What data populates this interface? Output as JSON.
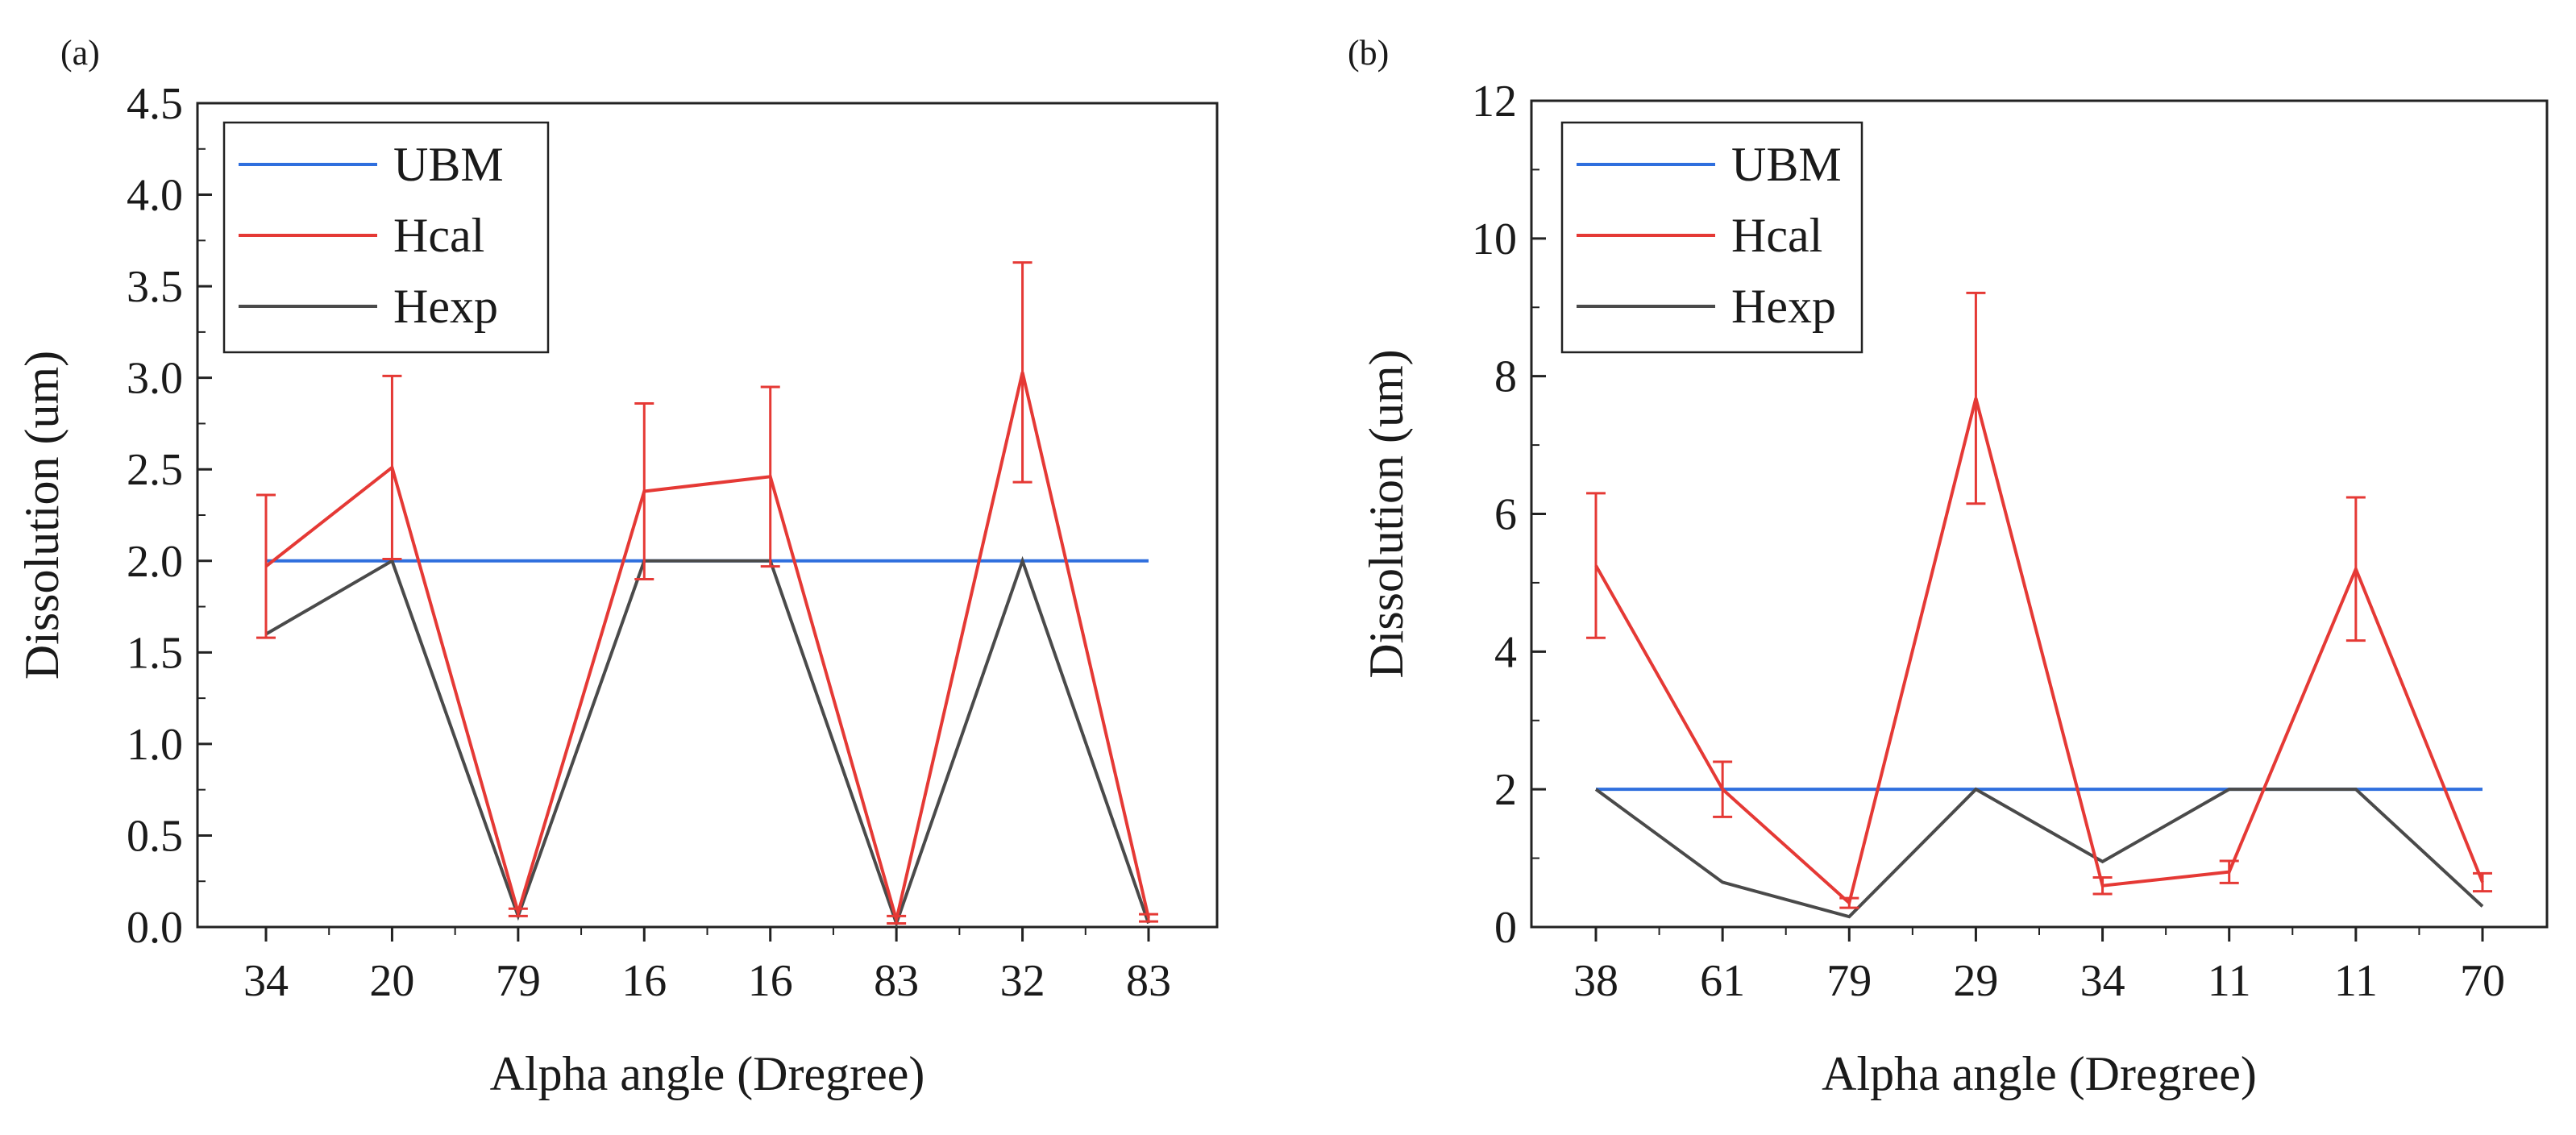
{
  "chart_data": [
    {
      "type": "line",
      "panel_label": "(a)",
      "categories": [
        "34",
        "20",
        "79",
        "16",
        "16",
        "83",
        "32",
        "83"
      ],
      "series": [
        {
          "name": "UBM",
          "color": "#2f6fde",
          "values": [
            2.0,
            2.0,
            2.0,
            2.0,
            2.0,
            2.0,
            2.0,
            2.0
          ]
        },
        {
          "name": "Hcal",
          "color": "#e53935",
          "values": [
            1.97,
            2.51,
            0.08,
            2.38,
            2.46,
            0.04,
            3.03,
            0.05
          ],
          "error": [
            0.39,
            0.5,
            0.02,
            0.48,
            0.49,
            0.02,
            0.6,
            0.02
          ]
        },
        {
          "name": "Hexp",
          "color": "#4a4a4a",
          "values": [
            1.6,
            2.0,
            0.06,
            2.0,
            2.0,
            0.02,
            2.0,
            0.02
          ]
        }
      ],
      "xlabel": "Alpha angle (Dregree)",
      "ylabel": "Dissolution (um)",
      "ylim": [
        0,
        4.5
      ],
      "yticks": [
        "0.0",
        "0.5",
        "1.0",
        "1.5",
        "2.0",
        "2.5",
        "3.0",
        "3.5",
        "4.0",
        "4.5"
      ],
      "ytick_values": [
        0,
        0.5,
        1.0,
        1.5,
        2.0,
        2.5,
        3.0,
        3.5,
        4.0,
        4.5
      ],
      "legend_position": "top-left"
    },
    {
      "type": "line",
      "panel_label": "(b)",
      "categories": [
        "38",
        "61",
        "79",
        "29",
        "34",
        "11",
        "11",
        "70"
      ],
      "series": [
        {
          "name": "UBM",
          "color": "#2f6fde",
          "values": [
            2.0,
            2.0,
            2.0,
            2.0,
            2.0,
            2.0,
            2.0,
            2.0
          ]
        },
        {
          "name": "Hcal",
          "color": "#e53935",
          "values": [
            5.25,
            2.0,
            0.35,
            7.68,
            0.6,
            0.8,
            5.2,
            0.65
          ],
          "error": [
            1.05,
            0.4,
            0.07,
            1.53,
            0.12,
            0.16,
            1.04,
            0.13
          ]
        },
        {
          "name": "Hexp",
          "color": "#4a4a4a",
          "values": [
            2.0,
            0.65,
            0.15,
            2.0,
            0.95,
            2.0,
            2.0,
            0.3
          ]
        }
      ],
      "xlabel": "Alpha angle (Dregree)",
      "ylabel": "Dissolution (um)",
      "ylim": [
        0,
        12
      ],
      "yticks": [
        "0",
        "2",
        "4",
        "6",
        "8",
        "10",
        "12"
      ],
      "ytick_values": [
        0,
        2,
        4,
        6,
        8,
        10,
        12
      ],
      "legend_position": "top-left"
    }
  ]
}
